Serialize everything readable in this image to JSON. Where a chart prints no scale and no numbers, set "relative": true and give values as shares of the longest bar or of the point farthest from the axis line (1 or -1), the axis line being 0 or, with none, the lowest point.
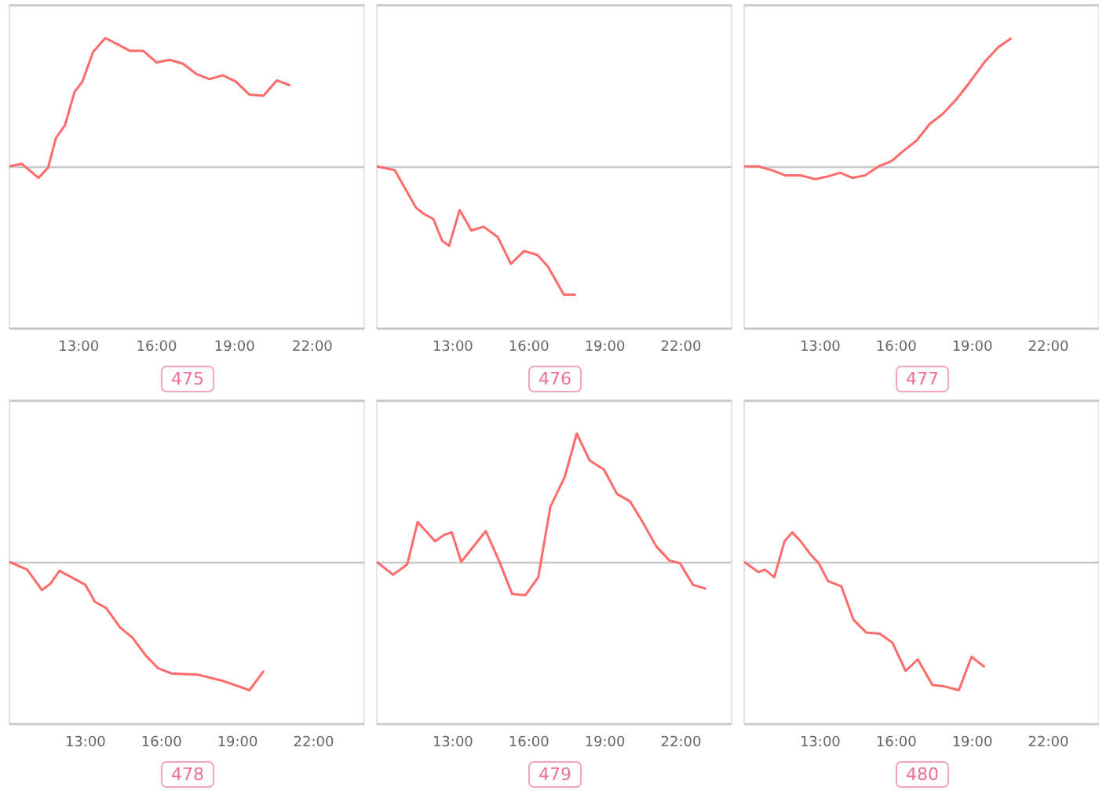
{
  "chart_data": [
    {
      "type": "line",
      "title": "475",
      "relative": true,
      "color": "#ff6b6b",
      "marker": "none",
      "xlim": [
        10.33,
        24
      ],
      "xticks": [
        {
          "value": 13,
          "label": "13:00"
        },
        {
          "value": 16,
          "label": "16:00"
        },
        {
          "value": 19,
          "label": "19:00"
        },
        {
          "value": 22,
          "label": "22:00"
        }
      ],
      "x": [
        10.33,
        10.8,
        11.45,
        11.82,
        12.12,
        12.47,
        12.84,
        13.14,
        13.55,
        14.02,
        14.51,
        14.98,
        15.49,
        16.0,
        16.51,
        17.02,
        17.53,
        18.04,
        18.55,
        19.06,
        19.57,
        20.12,
        20.63,
        21.16
      ],
      "values": [
        0,
        0.02,
        -0.09,
        -0.01,
        0.22,
        0.32,
        0.58,
        0.66,
        0.89,
        1,
        0.95,
        0.9,
        0.9,
        0.81,
        0.83,
        0.8,
        0.72,
        0.68,
        0.71,
        0.66,
        0.56,
        0.55,
        0.67,
        0.63
      ]
    },
    {
      "type": "line",
      "title": "476",
      "relative": true,
      "color": "#ff6b6b",
      "marker": "none",
      "xlim": [
        10,
        24
      ],
      "xticks": [
        {
          "value": 13,
          "label": "13:00"
        },
        {
          "value": 16,
          "label": "16:00"
        },
        {
          "value": 19,
          "label": "19:00"
        },
        {
          "value": 22,
          "label": "22:00"
        }
      ],
      "x": [
        10,
        10.71,
        11.54,
        11.85,
        12.23,
        12.58,
        12.85,
        13.27,
        13.73,
        14.21,
        14.77,
        15.29,
        15.81,
        16.33,
        16.75,
        17.38,
        17.85
      ],
      "values": [
        0,
        -0.03,
        -0.32,
        -0.37,
        -0.41,
        -0.58,
        -0.62,
        -0.34,
        -0.5,
        -0.47,
        -0.55,
        -0.76,
        -0.66,
        -0.69,
        -0.78,
        -1,
        -1
      ]
    },
    {
      "type": "line",
      "title": "477",
      "relative": true,
      "color": "#ff6b6b",
      "marker": "none",
      "xlim": [
        10,
        24
      ],
      "xticks": [
        {
          "value": 13,
          "label": "13:00"
        },
        {
          "value": 16,
          "label": "16:00"
        },
        {
          "value": 19,
          "label": "19:00"
        },
        {
          "value": 22,
          "label": "22:00"
        }
      ],
      "x": [
        10,
        10.57,
        11.09,
        11.61,
        12.23,
        12.81,
        13.27,
        13.79,
        14.27,
        14.77,
        15.31,
        15.81,
        16.28,
        16.8,
        17.32,
        17.84,
        18.36,
        18.88,
        19.47,
        20.03,
        20.55
      ],
      "values": [
        0,
        0,
        -0.03,
        -0.07,
        -0.07,
        -0.1,
        -0.08,
        -0.05,
        -0.09,
        -0.07,
        0,
        0.04,
        0.12,
        0.2,
        0.33,
        0.41,
        0.52,
        0.65,
        0.81,
        0.93,
        1
      ]
    },
    {
      "type": "line",
      "title": "478",
      "relative": true,
      "color": "#ff6b6b",
      "marker": "none",
      "xlim": [
        10,
        24
      ],
      "xticks": [
        {
          "value": 13,
          "label": "13:00"
        },
        {
          "value": 16,
          "label": "16:00"
        },
        {
          "value": 19,
          "label": "19:00"
        },
        {
          "value": 22,
          "label": "22:00"
        }
      ],
      "x": [
        10,
        10.7,
        11.28,
        11.62,
        11.97,
        12.45,
        13.0,
        13.37,
        13.82,
        14.36,
        14.85,
        15.38,
        15.87,
        16.4,
        17.44,
        18.46,
        19.47,
        20.04
      ],
      "values": [
        0,
        -0.06,
        -0.22,
        -0.17,
        -0.07,
        -0.12,
        -0.18,
        -0.31,
        -0.36,
        -0.51,
        -0.59,
        -0.73,
        -0.83,
        -0.87,
        -0.88,
        -0.93,
        -1,
        -0.85
      ]
    },
    {
      "type": "line",
      "title": "479",
      "relative": true,
      "color": "#ff6b6b",
      "marker": "none",
      "xlim": [
        10,
        24
      ],
      "xticks": [
        {
          "value": 13,
          "label": "13:00"
        },
        {
          "value": 16,
          "label": "16:00"
        },
        {
          "value": 19,
          "label": "19:00"
        },
        {
          "value": 22,
          "label": "22:00"
        }
      ],
      "x": [
        10,
        10.64,
        11.2,
        11.61,
        12.3,
        12.65,
        12.96,
        13.33,
        14.3,
        14.82,
        15.34,
        15.86,
        16.37,
        16.85,
        17.41,
        17.89,
        18.4,
        18.96,
        19.48,
        20.0,
        20.52,
        21.03,
        21.55,
        21.96,
        22.48,
        23.0
      ],
      "values": [
        0,
        -0.1,
        -0.02,
        0.31,
        0.16,
        0.21,
        0.23,
        0,
        0.24,
        0.01,
        -0.25,
        -0.26,
        -0.12,
        0.43,
        0.66,
        1,
        0.79,
        0.72,
        0.53,
        0.47,
        0.3,
        0.12,
        0.01,
        -0.01,
        -0.18,
        -0.21
      ]
    },
    {
      "type": "line",
      "title": "480",
      "relative": true,
      "color": "#ff6b6b",
      "marker": "none",
      "xlim": [
        10,
        24
      ],
      "xticks": [
        {
          "value": 13,
          "label": "13:00"
        },
        {
          "value": 16,
          "label": "16:00"
        },
        {
          "value": 19,
          "label": "19:00"
        },
        {
          "value": 22,
          "label": "22:00"
        }
      ],
      "x": [
        10,
        10.56,
        10.82,
        11.19,
        11.59,
        11.9,
        12.23,
        12.65,
        12.94,
        13.31,
        13.83,
        14.31,
        14.81,
        15.35,
        15.85,
        16.37,
        16.85,
        17.43,
        17.89,
        18.47,
        18.97,
        19.49
      ],
      "values": [
        0,
        -0.08,
        -0.06,
        -0.12,
        0.16,
        0.23,
        0.16,
        0.05,
        -0.01,
        -0.15,
        -0.19,
        -0.45,
        -0.55,
        -0.56,
        -0.63,
        -0.85,
        -0.76,
        -0.96,
        -0.97,
        -1,
        -0.74,
        -0.82
      ]
    }
  ]
}
